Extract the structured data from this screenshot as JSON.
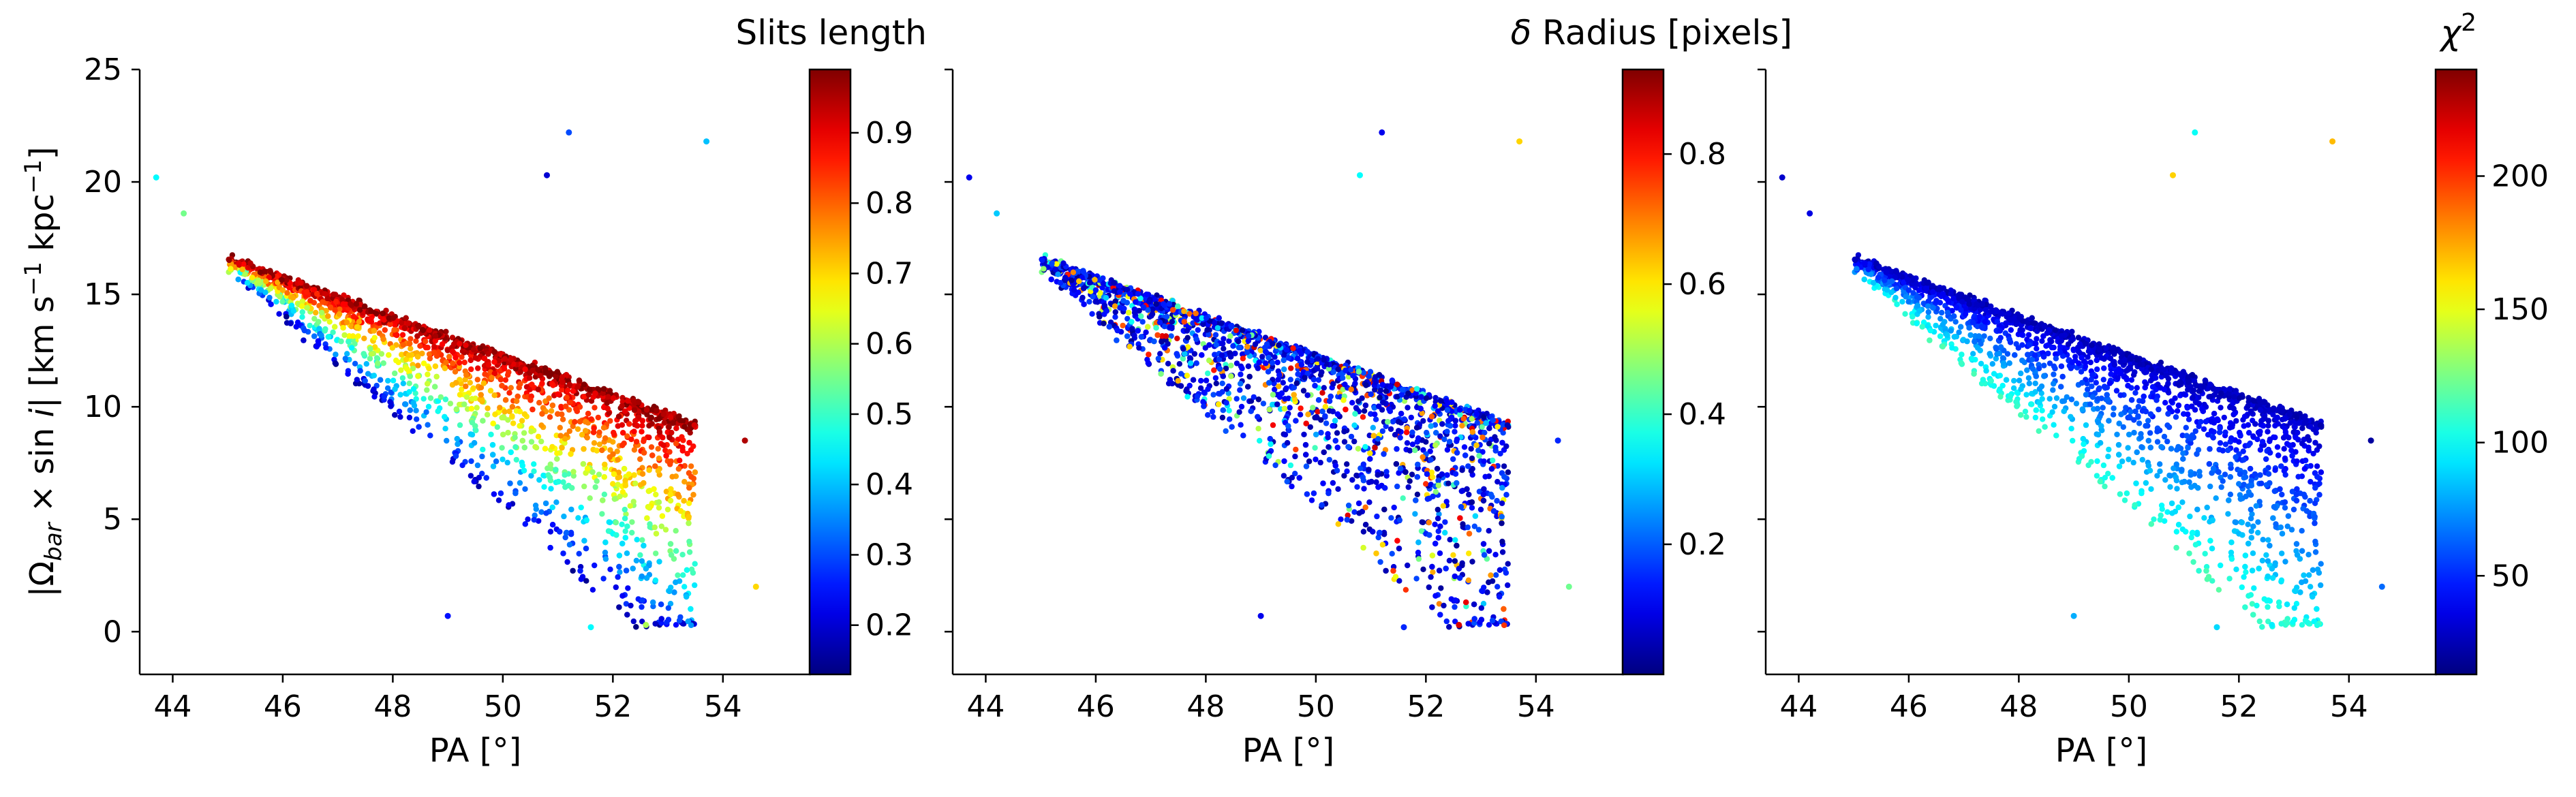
{
  "chart_data": [
    {
      "type": "scatter",
      "xlabel": "PA [°]",
      "ylabel_parts": [
        "|Ω",
        "bar",
        " × sin ",
        "i",
        "|  [km s",
        "−1",
        " kpc",
        "−1",
        "]"
      ],
      "xlim": [
        43.4,
        55.6
      ],
      "ylim": [
        -1.9,
        25
      ],
      "xticks": [
        44,
        46,
        48,
        50,
        52,
        54
      ],
      "yticks": [
        0,
        5,
        10,
        15,
        20,
        25
      ],
      "colorbar": {
        "label": "Slits length",
        "range": [
          0.13,
          0.99
        ],
        "ticks": [
          0.2,
          0.3,
          0.4,
          0.5,
          0.6,
          0.7,
          0.8,
          0.9
        ],
        "colormap": "jet"
      },
      "color_trend": "slits length increases toward the upper edge of the cloud (high Ω for a given PA); scattered low-Ω points have low-to-mid values",
      "isolated_points": [
        {
          "x": 43.7,
          "y": 20.2,
          "c": 0.45
        },
        {
          "x": 44.2,
          "y": 18.6,
          "c": 0.55
        },
        {
          "x": 50.8,
          "y": 20.3,
          "c": 0.2
        },
        {
          "x": 51.2,
          "y": 22.2,
          "c": 0.3
        },
        {
          "x": 53.7,
          "y": 21.8,
          "c": 0.4
        },
        {
          "x": 54.4,
          "y": 8.5,
          "c": 0.95
        },
        {
          "x": 54.6,
          "y": 2.0,
          "c": 0.7
        },
        {
          "x": 52.6,
          "y": 0.3,
          "c": 0.6
        },
        {
          "x": 51.6,
          "y": 0.2,
          "c": 0.45
        },
        {
          "x": 49.0,
          "y": 0.7,
          "c": 0.25
        }
      ]
    },
    {
      "type": "scatter",
      "xlabel": "PA [°]",
      "xlim": [
        43.4,
        55.6
      ],
      "ylim": [
        -1.9,
        25
      ],
      "xticks": [
        44,
        46,
        48,
        50,
        52,
        54
      ],
      "yticks": [
        0,
        5,
        10,
        15,
        20,
        25
      ],
      "colorbar": {
        "label_symbol": "δ",
        "label": " Radius [pixels]",
        "range": [
          0.0,
          0.93
        ],
        "ticks": [
          0.2,
          0.4,
          0.6,
          0.8
        ],
        "colormap": "jet"
      },
      "color_trend": "mostly low values (blue) with scattered higher values (cyan to red) along the upper edge",
      "isolated_points": [
        {
          "x": 43.7,
          "y": 20.2,
          "c": 0.1
        },
        {
          "x": 44.2,
          "y": 18.6,
          "c": 0.3
        },
        {
          "x": 50.8,
          "y": 20.3,
          "c": 0.35
        },
        {
          "x": 51.2,
          "y": 22.2,
          "c": 0.1
        },
        {
          "x": 53.7,
          "y": 21.8,
          "c": 0.62
        },
        {
          "x": 54.4,
          "y": 8.5,
          "c": 0.15
        },
        {
          "x": 54.6,
          "y": 2.0,
          "c": 0.45
        },
        {
          "x": 52.6,
          "y": 0.3,
          "c": 0.85
        },
        {
          "x": 51.6,
          "y": 0.2,
          "c": 0.15
        },
        {
          "x": 49.0,
          "y": 0.7,
          "c": 0.1
        }
      ]
    },
    {
      "type": "scatter",
      "xlabel": "PA [°]",
      "xlim": [
        43.4,
        55.6
      ],
      "ylim": [
        -1.9,
        25
      ],
      "xticks": [
        44,
        46,
        48,
        50,
        52,
        54
      ],
      "yticks": [
        0,
        5,
        10,
        15,
        20,
        25
      ],
      "colorbar": {
        "label_symbol": "χ",
        "label_sup": "2",
        "range": [
          13,
          240
        ],
        "ticks": [
          50,
          100,
          150,
          200
        ],
        "colormap": "jet"
      },
      "color_trend": "low χ² (dark blue) along the upper edge, increasing to ~100 (cyan) in the scattered low-Ω points",
      "isolated_points": [
        {
          "x": 43.7,
          "y": 20.2,
          "c": 30
        },
        {
          "x": 44.2,
          "y": 18.6,
          "c": 35
        },
        {
          "x": 50.8,
          "y": 20.3,
          "c": 165
        },
        {
          "x": 51.2,
          "y": 22.2,
          "c": 100
        },
        {
          "x": 53.7,
          "y": 21.8,
          "c": 170
        },
        {
          "x": 54.4,
          "y": 8.5,
          "c": 20
        },
        {
          "x": 54.6,
          "y": 2.0,
          "c": 65
        },
        {
          "x": 52.6,
          "y": 0.3,
          "c": 95
        },
        {
          "x": 51.6,
          "y": 0.2,
          "c": 90
        },
        {
          "x": 49.0,
          "y": 0.7,
          "c": 80
        }
      ]
    }
  ],
  "cloud": {
    "upper_edge": {
      "x0": 45.0,
      "y0": 16.6,
      "x1": 53.2,
      "y1": 9.5
    },
    "description": "dense band of several thousand points along the upper edge with a sparse fan of points extending down to Ω≈0 at larger PA"
  }
}
